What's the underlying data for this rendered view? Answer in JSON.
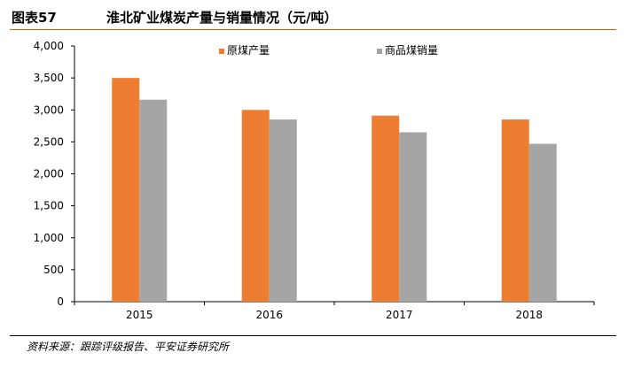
{
  "header": {
    "figure_label": "图表57",
    "title": "淮北矿业煤炭产量与销量情况（元/吨）"
  },
  "source": "资料来源：跟踪评级报告、平安证券研究所",
  "colors": {
    "accent": "#c55a11",
    "series1": "#ed7d31",
    "series2": "#a5a5a5"
  },
  "chart_data": {
    "type": "bar",
    "title": "",
    "xlabel": "",
    "ylabel": "",
    "categories": [
      "2015",
      "2016",
      "2017",
      "2018"
    ],
    "series": [
      {
        "name": "原煤产量",
        "color": "#ed7d31",
        "values": [
          3500,
          3000,
          2910,
          2850
        ]
      },
      {
        "name": "商品煤销量",
        "color": "#a5a5a5",
        "values": [
          3160,
          2850,
          2650,
          2470
        ]
      }
    ],
    "ylim": [
      0,
      4000
    ],
    "yticks": [
      0,
      500,
      1000,
      1500,
      2000,
      2500,
      3000,
      3500,
      4000
    ],
    "ytick_labels": [
      "0",
      "500",
      "1,000",
      "1,500",
      "2,000",
      "2,500",
      "3,000",
      "3,500",
      "4,000"
    ],
    "grid": false,
    "legend": "top"
  }
}
